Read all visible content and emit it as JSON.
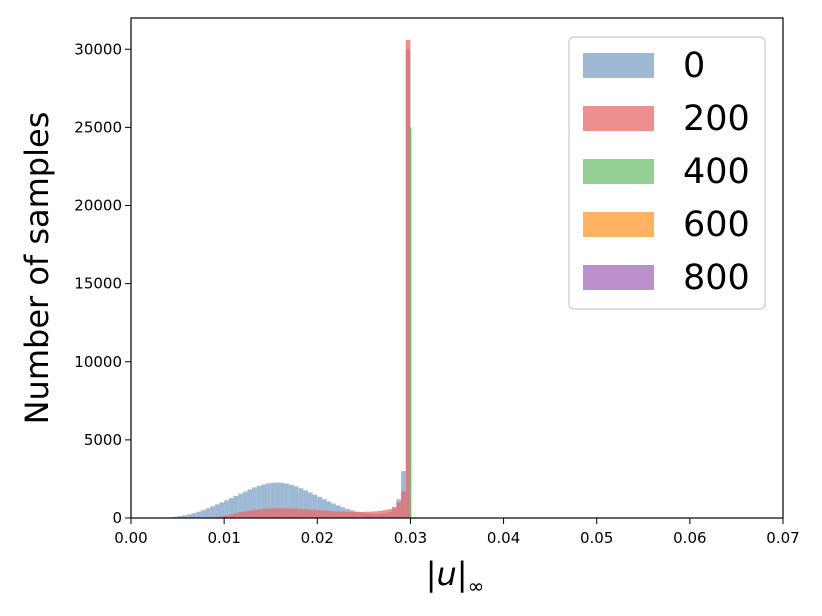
{
  "chart_data": {
    "type": "bar",
    "subtype": "histogram-overlay",
    "title": "",
    "xlabel_base": "|u|",
    "xlabel_sub": "∞",
    "ylabel": "Number of samples",
    "xlim": [
      0.0,
      0.07
    ],
    "ylim": [
      0,
      32000
    ],
    "xticks": [
      {
        "value": 0.0,
        "label": "0.00"
      },
      {
        "value": 0.01,
        "label": "0.01"
      },
      {
        "value": 0.02,
        "label": "0.02"
      },
      {
        "value": 0.03,
        "label": "0.03"
      },
      {
        "value": 0.04,
        "label": "0.04"
      },
      {
        "value": 0.05,
        "label": "0.05"
      },
      {
        "value": 0.06,
        "label": "0.06"
      },
      {
        "value": 0.07,
        "label": "0.07"
      }
    ],
    "yticks": [
      {
        "value": 0,
        "label": "0"
      },
      {
        "value": 5000,
        "label": "5000"
      },
      {
        "value": 10000,
        "label": "10000"
      },
      {
        "value": 15000,
        "label": "15000"
      },
      {
        "value": 20000,
        "label": "20000"
      },
      {
        "value": 25000,
        "label": "25000"
      },
      {
        "value": 30000,
        "label": "30000"
      }
    ],
    "grid": false,
    "legend_position": "top-right",
    "bin_width": 0.0005,
    "series": [
      {
        "name": "0",
        "color": "#7da1c4",
        "bin_starts": [
          0.0035,
          0.004,
          0.0045,
          0.005,
          0.0055,
          0.006,
          0.0065,
          0.007,
          0.0075,
          0.008,
          0.0085,
          0.009,
          0.0095,
          0.01,
          0.0105,
          0.011,
          0.0115,
          0.012,
          0.0125,
          0.013,
          0.0135,
          0.014,
          0.0145,
          0.015,
          0.0155,
          0.016,
          0.0165,
          0.017,
          0.0175,
          0.018,
          0.0185,
          0.019,
          0.0195,
          0.02,
          0.0205,
          0.021,
          0.0215,
          0.022,
          0.0225,
          0.023,
          0.0235,
          0.024,
          0.0245,
          0.025,
          0.0255,
          0.026,
          0.0265,
          0.027,
          0.0275,
          0.028,
          0.0285,
          0.029,
          0.0295
        ],
        "counts": [
          20,
          40,
          80,
          120,
          170,
          230,
          310,
          400,
          500,
          620,
          750,
          870,
          1000,
          1130,
          1270,
          1410,
          1550,
          1690,
          1830,
          1960,
          2060,
          2150,
          2220,
          2260,
          2270,
          2250,
          2200,
          2120,
          2020,
          1900,
          1770,
          1630,
          1490,
          1350,
          1200,
          1060,
          930,
          800,
          690,
          580,
          490,
          410,
          340,
          290,
          260,
          250,
          260,
          300,
          380,
          600,
          1200,
          3000,
          30000
        ]
      },
      {
        "name": "200",
        "color": "#e8686a",
        "bin_starts": [
          0.008,
          0.0085,
          0.009,
          0.0095,
          0.01,
          0.0105,
          0.011,
          0.0115,
          0.012,
          0.0125,
          0.013,
          0.0135,
          0.014,
          0.0145,
          0.015,
          0.0155,
          0.016,
          0.0165,
          0.017,
          0.0175,
          0.018,
          0.0185,
          0.019,
          0.0195,
          0.02,
          0.0205,
          0.021,
          0.0215,
          0.022,
          0.0225,
          0.023,
          0.0235,
          0.024,
          0.0245,
          0.025,
          0.0255,
          0.026,
          0.0265,
          0.027,
          0.0275,
          0.028,
          0.0285,
          0.029,
          0.0295
        ],
        "counts": [
          10,
          30,
          60,
          100,
          160,
          230,
          300,
          370,
          430,
          480,
          520,
          550,
          580,
          600,
          610,
          620,
          620,
          620,
          610,
          600,
          580,
          560,
          540,
          520,
          500,
          480,
          460,
          440,
          420,
          410,
          400,
          390,
          390,
          390,
          400,
          410,
          430,
          460,
          500,
          560,
          700,
          1000,
          1700,
          30600
        ]
      },
      {
        "name": "400",
        "color": "#70c070",
        "bin_starts": [
          0.0299
        ],
        "bin_widths": [
          0.0002
        ],
        "counts": [
          25000
        ]
      },
      {
        "name": "600",
        "color": "#ff9a2e",
        "bin_starts": [],
        "counts": []
      },
      {
        "name": "800",
        "color": "#a66bb8",
        "bin_starts": [],
        "counts": []
      }
    ]
  }
}
